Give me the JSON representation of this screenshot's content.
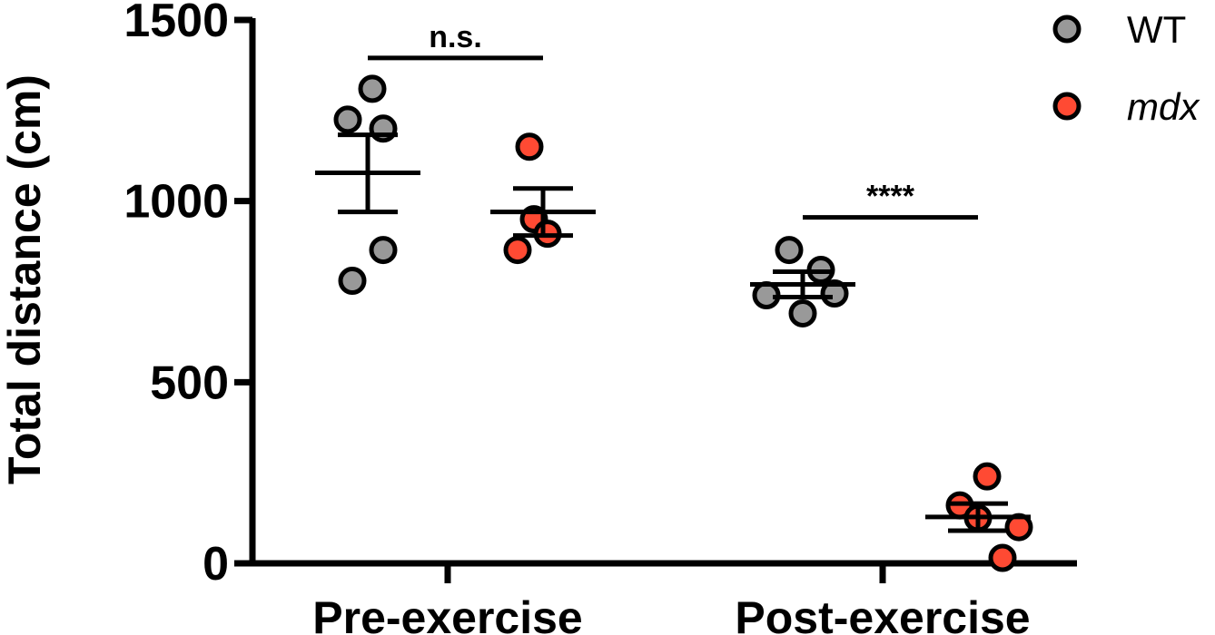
{
  "chart_data": {
    "type": "scatter",
    "ylabel": "Total distance (cm)",
    "xlabel": "",
    "ylim": [
      0,
      1500
    ],
    "yticks": [
      "0",
      "500",
      "1000",
      "1500"
    ],
    "categories": [
      "Pre-exercise",
      "Post-exercise"
    ],
    "legend_position": "top-right",
    "series": [
      {
        "name": "WT",
        "italic": false,
        "color": "#999999",
        "groups": [
          {
            "category": "Pre-exercise",
            "points": [
              1310,
              1225,
              1200,
              865,
              780
            ],
            "mean": 1078,
            "sem_low": 970,
            "sem_high": 1183
          },
          {
            "category": "Post-exercise",
            "points": [
              865,
              810,
              745,
              740,
              690
            ],
            "mean": 770,
            "sem_low": 735,
            "sem_high": 805
          }
        ]
      },
      {
        "name": "mdx",
        "italic": true,
        "color": "#ff4a33",
        "groups": [
          {
            "category": "Pre-exercise",
            "points": [
              1150,
              950,
              910,
              865
            ],
            "mean": 970,
            "sem_low": 905,
            "sem_high": 1035
          },
          {
            "category": "Post-exercise",
            "points": [
              240,
              160,
              125,
              100,
              15
            ],
            "mean": 128,
            "sem_low": 90,
            "sem_high": 165
          }
        ]
      }
    ],
    "annotations": [
      {
        "text": "n.s.",
        "category": "Pre-exercise",
        "y": 1395
      },
      {
        "text": "****",
        "category": "Post-exercise",
        "y": 955
      }
    ]
  }
}
